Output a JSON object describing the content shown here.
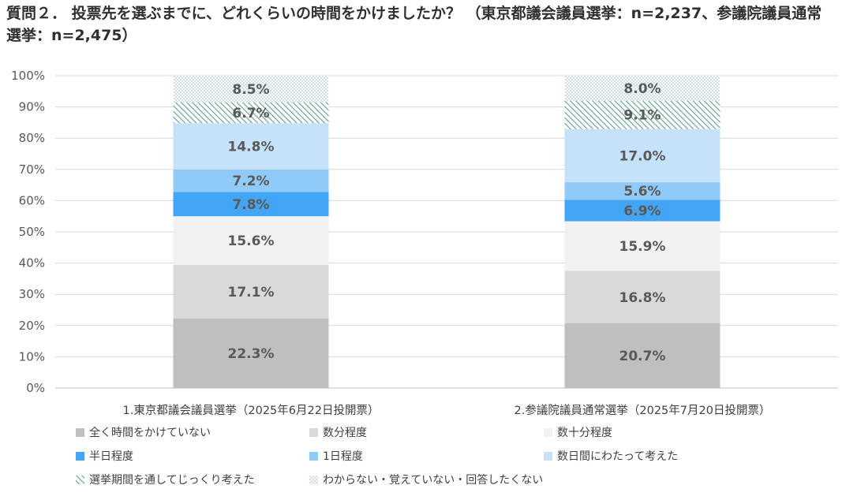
{
  "title": "質問２． 投票先を選ぶまでに、どれくらいの時間をかけましたか？ （東京都議会議員選挙：n=2,237、参議院議員通常選挙：n=2,475）",
  "chart_data": {
    "type": "bar",
    "stacked": true,
    "categories": [
      "1.東京都議会議員選挙（2025年6月22日投開票）",
      "2.参議院議員通常選挙（2025年7月20日投開票）"
    ],
    "series": [
      {
        "name": "全く時間をかけていない",
        "values": [
          22.3,
          20.7
        ],
        "labels": [
          "22.3%",
          "20.7%"
        ],
        "color": "#bfbfbf",
        "fill": "solid"
      },
      {
        "name": "数分程度",
        "values": [
          17.1,
          16.8
        ],
        "labels": [
          "17.1%",
          "16.8%"
        ],
        "color": "#d9d9d9",
        "fill": "solid"
      },
      {
        "name": "数十分程度",
        "values": [
          15.6,
          15.9
        ],
        "labels": [
          "15.6%",
          "15.9%"
        ],
        "color": "#f2f2f2",
        "fill": "solid"
      },
      {
        "name": "半日程度",
        "values": [
          7.8,
          6.9
        ],
        "labels": [
          "7.8%",
          "6.9%"
        ],
        "color": "#42a5f5",
        "fill": "solid"
      },
      {
        "name": "1日程度",
        "values": [
          7.2,
          5.6
        ],
        "labels": [
          "7.2%",
          "5.6%"
        ],
        "color": "#90caf9",
        "fill": "solid"
      },
      {
        "name": "数日間にわたって考えた",
        "values": [
          14.8,
          17.0
        ],
        "labels": [
          "14.8%",
          "17.0%"
        ],
        "color": "#c6e2fb",
        "fill": "solid"
      },
      {
        "name": "選挙期間を通してじっくり考えた",
        "values": [
          6.7,
          9.1
        ],
        "labels": [
          "6.7%",
          "9.1%"
        ],
        "color": "#5f9e8c",
        "fill": "hatch"
      },
      {
        "name": "わからない・覚えていない・回答したくない",
        "values": [
          8.5,
          8.0
        ],
        "labels": [
          "8.5%",
          "8.0%"
        ],
        "color": "#7fb3b3",
        "fill": "dots"
      }
    ],
    "y_ticks": [
      "0%",
      "10%",
      "20%",
      "30%",
      "40%",
      "50%",
      "60%",
      "70%",
      "80%",
      "90%",
      "100%"
    ],
    "ylim": [
      0,
      100
    ],
    "grid": true,
    "legend_position": "bottom"
  }
}
